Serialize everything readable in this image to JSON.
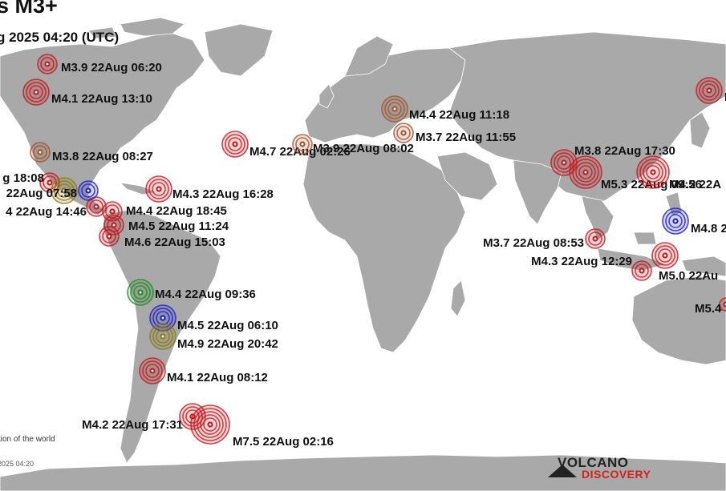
{
  "header": {
    "title": "s M3+",
    "subtitle": "g 2025 04:20 (UTC)"
  },
  "footer": {
    "note": "tion of the world",
    "timestamp": "2025 04:20"
  },
  "logo": {
    "line1": "VOLCANO",
    "line2": "DISCOVERY"
  },
  "colors": {
    "ocean": "#ffffff",
    "land": "#a9a9a9",
    "border": "#ffffff",
    "marker_red": "#c4161c",
    "marker_blue": "#1a1acc",
    "marker_green": "#1f8a1f",
    "marker_olive": "#8a7a10",
    "marker_orange": "#a0522d"
  },
  "quakes": [
    {
      "label": "M3.9 22Aug 06:20",
      "color": "marker_red"
    },
    {
      "label": "M4.1 22Aug 13:10",
      "color": "marker_red"
    },
    {
      "label": "M3.8 22Aug 08:27",
      "color": "marker_orange"
    },
    {
      "label": "g 18:08",
      "color": "marker_red"
    },
    {
      "label": "22Aug 07:58",
      "color": "marker_olive"
    },
    {
      "label": "4 22Aug 14:46",
      "color": "marker_red"
    },
    {
      "label": "",
      "color": "marker_blue"
    },
    {
      "label": "M4.4 22Aug 18:45",
      "color": "marker_red"
    },
    {
      "label": "M4.5 22Aug 11:24",
      "color": "marker_red"
    },
    {
      "label": "M4.6 22Aug 15:03",
      "color": "marker_red"
    },
    {
      "label": "M4.3 22Aug 16:28",
      "color": "marker_red"
    },
    {
      "label": "M4.7 22Aug 02:26",
      "color": "marker_red"
    },
    {
      "label": "M3.9 22Aug 08:02",
      "color": "marker_orange"
    },
    {
      "label": "M4.4 22Aug 11:18",
      "color": "marker_orange"
    },
    {
      "label": "M3.7 22Aug 11:55",
      "color": "marker_orange"
    },
    {
      "label": "M3.8 22Aug 17:30",
      "color": "marker_red"
    },
    {
      "label": "M5.3 22Aug 09:56",
      "color": "marker_red"
    },
    {
      "label": "M4.2 22A",
      "color": "marker_red"
    },
    {
      "label": "M4.8 2",
      "color": "marker_blue"
    },
    {
      "label": "M3.7 22Aug 08:53",
      "color": "marker_red"
    },
    {
      "label": "M4.3 22Aug 12:29",
      "color": "marker_red"
    },
    {
      "label": "M5.0 22Au",
      "color": "marker_red"
    },
    {
      "label": "M5.4",
      "color": "marker_red"
    },
    {
      "label": "M",
      "color": "marker_red"
    },
    {
      "label": "M4.4 22Aug 09:36",
      "color": "marker_green"
    },
    {
      "label": "M4.5 22Aug 06:10",
      "color": "marker_blue"
    },
    {
      "label": "M4.9 22Aug 20:42",
      "color": "marker_olive"
    },
    {
      "label": "M4.1 22Aug 08:12",
      "color": "marker_red"
    },
    {
      "label": "M4.2 22Aug 17:31",
      "color": "marker_red"
    },
    {
      "label": "M7.5 22Aug 02:16",
      "color": "marker_red"
    }
  ]
}
